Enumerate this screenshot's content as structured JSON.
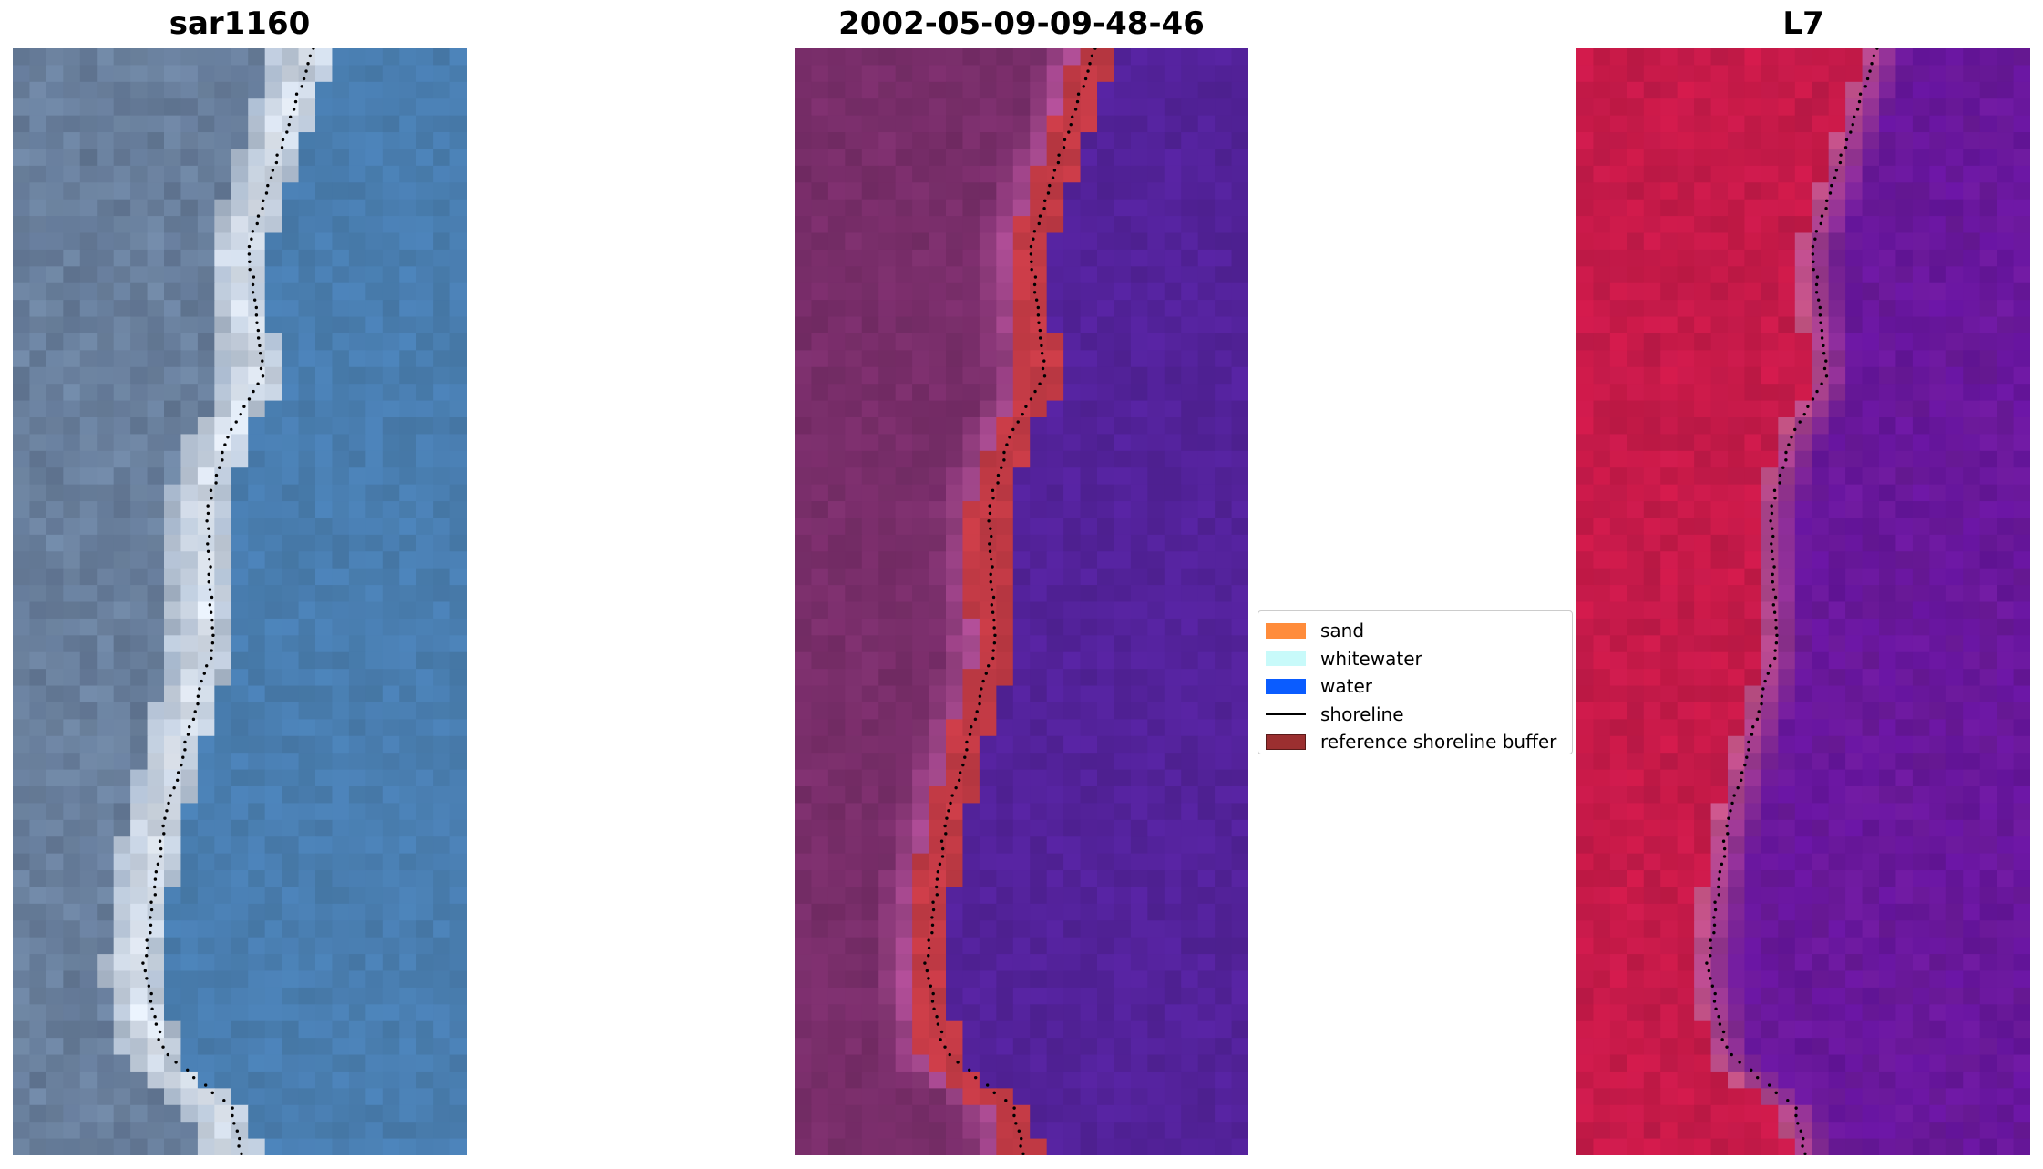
{
  "panels": [
    {
      "title": "sar1160",
      "kind": "rgb"
    },
    {
      "title": "2002-05-09-09-48-46",
      "kind": "classified"
    },
    {
      "title": "L7",
      "kind": "false-color"
    }
  ],
  "legend": {
    "items": [
      {
        "label": "sand",
        "type": "patch",
        "color": "#ff8c3b"
      },
      {
        "label": "whitewater",
        "type": "patch",
        "color": "#c8fafa"
      },
      {
        "label": "water",
        "type": "patch",
        "color": "#0a5cff"
      },
      {
        "label": "shoreline",
        "type": "line",
        "color": "#000000"
      },
      {
        "label": "reference shoreline buffer",
        "type": "patch",
        "color": "#9b2f30"
      }
    ]
  },
  "colors": {
    "rgb_land": "#6f86a3",
    "rgb_sand": "#e8eef6",
    "rgb_water": "#4a7fb0",
    "class_land": "#7a2f6b",
    "class_beach": "#b4519a",
    "class_buffer": "#c23a45",
    "class_water": "#53229a",
    "fc_land": "#c41a4a",
    "fc_beach": "#c75585",
    "fc_water": "#6c1a9a"
  }
}
